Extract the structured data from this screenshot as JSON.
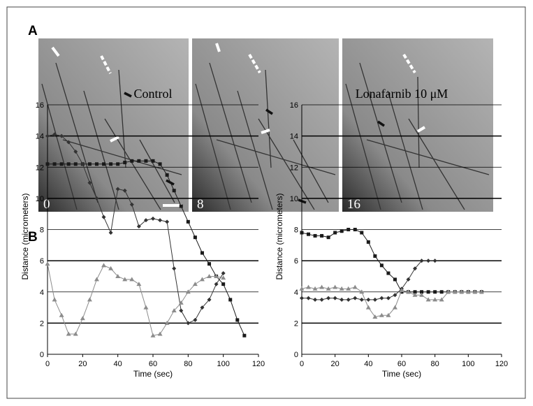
{
  "panels": {
    "a": "A",
    "b": "B",
    "times": [
      "0",
      "8",
      "16"
    ]
  },
  "chart_data": [
    {
      "type": "line",
      "title": "Control",
      "xlabel": "Time (sec)",
      "ylabel": "Distance (micrometers)",
      "xlim": [
        0,
        120
      ],
      "xticks": [
        0,
        20,
        40,
        60,
        80,
        100,
        120
      ],
      "ylim": [
        0,
        16
      ],
      "yticks": [
        0,
        2,
        4,
        6,
        8,
        10,
        12,
        14,
        16
      ],
      "grid": true,
      "series": [
        {
          "color": "#1a1a1a",
          "marker": "square",
          "x": [
            0,
            4,
            8,
            12,
            16,
            20,
            24,
            28,
            32,
            36,
            40,
            44,
            48,
            52,
            56,
            60,
            64,
            68,
            72,
            76,
            80,
            84,
            88,
            92,
            96,
            100,
            104,
            108,
            112
          ],
          "values": [
            12.2,
            12.2,
            12.2,
            12.2,
            12.2,
            12.2,
            12.2,
            12.2,
            12.2,
            12.2,
            12.2,
            12.3,
            12.4,
            12.4,
            12.4,
            12.4,
            12.2,
            11.5,
            10.5,
            9.5,
            8.5,
            7.5,
            6.5,
            5.8,
            5.0,
            4.5,
            3.5,
            2.2,
            1.2
          ]
        },
        {
          "color": "#333333",
          "marker": "diamond",
          "x": [
            0,
            4,
            8,
            12,
            16,
            20,
            24,
            28,
            32,
            36,
            40,
            44,
            48,
            52,
            56,
            60,
            64,
            68,
            72,
            76,
            80,
            84,
            88,
            92,
            96,
            100
          ],
          "values": [
            14,
            14.1,
            14,
            13.6,
            13,
            12.2,
            11,
            10,
            8.8,
            7.8,
            10.6,
            10.5,
            9.6,
            8.2,
            8.6,
            8.7,
            8.6,
            8.5,
            5.5,
            2.8,
            2,
            2.2,
            3,
            3.5,
            4.5,
            5.2
          ]
        },
        {
          "color": "#8c8c8c",
          "marker": "triangle",
          "x": [
            0,
            4,
            8,
            12,
            16,
            20,
            24,
            28,
            32,
            36,
            40,
            44,
            48,
            52,
            56,
            60,
            64,
            68,
            72,
            76,
            80,
            84,
            88,
            92,
            96,
            100
          ],
          "values": [
            5.8,
            3.5,
            2.5,
            1.3,
            1.3,
            2.3,
            3.5,
            4.8,
            5.7,
            5.5,
            5,
            4.8,
            4.8,
            4.5,
            3,
            1.2,
            1.3,
            2,
            2.8,
            3.3,
            4,
            4.5,
            4.8,
            5,
            5,
            4.9
          ]
        }
      ]
    },
    {
      "type": "line",
      "title": "Lonafarnib 10 μM",
      "xlabel": "Time (sec)",
      "ylabel": "Distance (micrometers)",
      "xlim": [
        0,
        120
      ],
      "xticks": [
        0,
        20,
        40,
        60,
        80,
        100,
        120
      ],
      "ylim": [
        0,
        16
      ],
      "yticks": [
        0,
        2,
        4,
        6,
        8,
        10,
        12,
        14,
        16
      ],
      "grid": true,
      "series": [
        {
          "color": "#1a1a1a",
          "marker": "square",
          "x": [
            0,
            4,
            8,
            12,
            16,
            20,
            24,
            28,
            32,
            36,
            40,
            44,
            48,
            52,
            56,
            60,
            64,
            68,
            72,
            76,
            80,
            84,
            88,
            92,
            96,
            100,
            104,
            108
          ],
          "values": [
            7.8,
            7.7,
            7.6,
            7.6,
            7.5,
            7.8,
            7.9,
            8,
            8,
            7.8,
            7.2,
            6.3,
            5.7,
            5.2,
            4.8,
            4,
            4,
            4,
            4,
            4,
            4,
            4,
            4,
            4,
            4,
            4,
            4,
            4
          ]
        },
        {
          "color": "#333333",
          "marker": "diamond",
          "x": [
            0,
            4,
            8,
            12,
            16,
            20,
            24,
            28,
            32,
            36,
            40,
            44,
            48,
            52,
            56,
            60,
            64,
            68,
            72,
            76,
            80
          ],
          "values": [
            3.6,
            3.6,
            3.5,
            3.5,
            3.6,
            3.6,
            3.5,
            3.5,
            3.6,
            3.5,
            3.5,
            3.5,
            3.6,
            3.6,
            3.8,
            4.2,
            4.8,
            5.5,
            6,
            6,
            6
          ]
        },
        {
          "color": "#8c8c8c",
          "marker": "triangle",
          "x": [
            0,
            4,
            8,
            12,
            16,
            20,
            24,
            28,
            32,
            36,
            40,
            44,
            48,
            52,
            56,
            60,
            64,
            68,
            72,
            76,
            80,
            84,
            88,
            92,
            96,
            100,
            104,
            108
          ],
          "values": [
            4.2,
            4.3,
            4.2,
            4.3,
            4.2,
            4.3,
            4.2,
            4.2,
            4.3,
            4,
            3,
            2.4,
            2.5,
            2.5,
            3,
            4.1,
            4,
            3.8,
            3.8,
            3.5,
            3.5,
            3.5,
            4,
            4,
            4,
            4,
            4,
            4
          ]
        }
      ]
    }
  ]
}
